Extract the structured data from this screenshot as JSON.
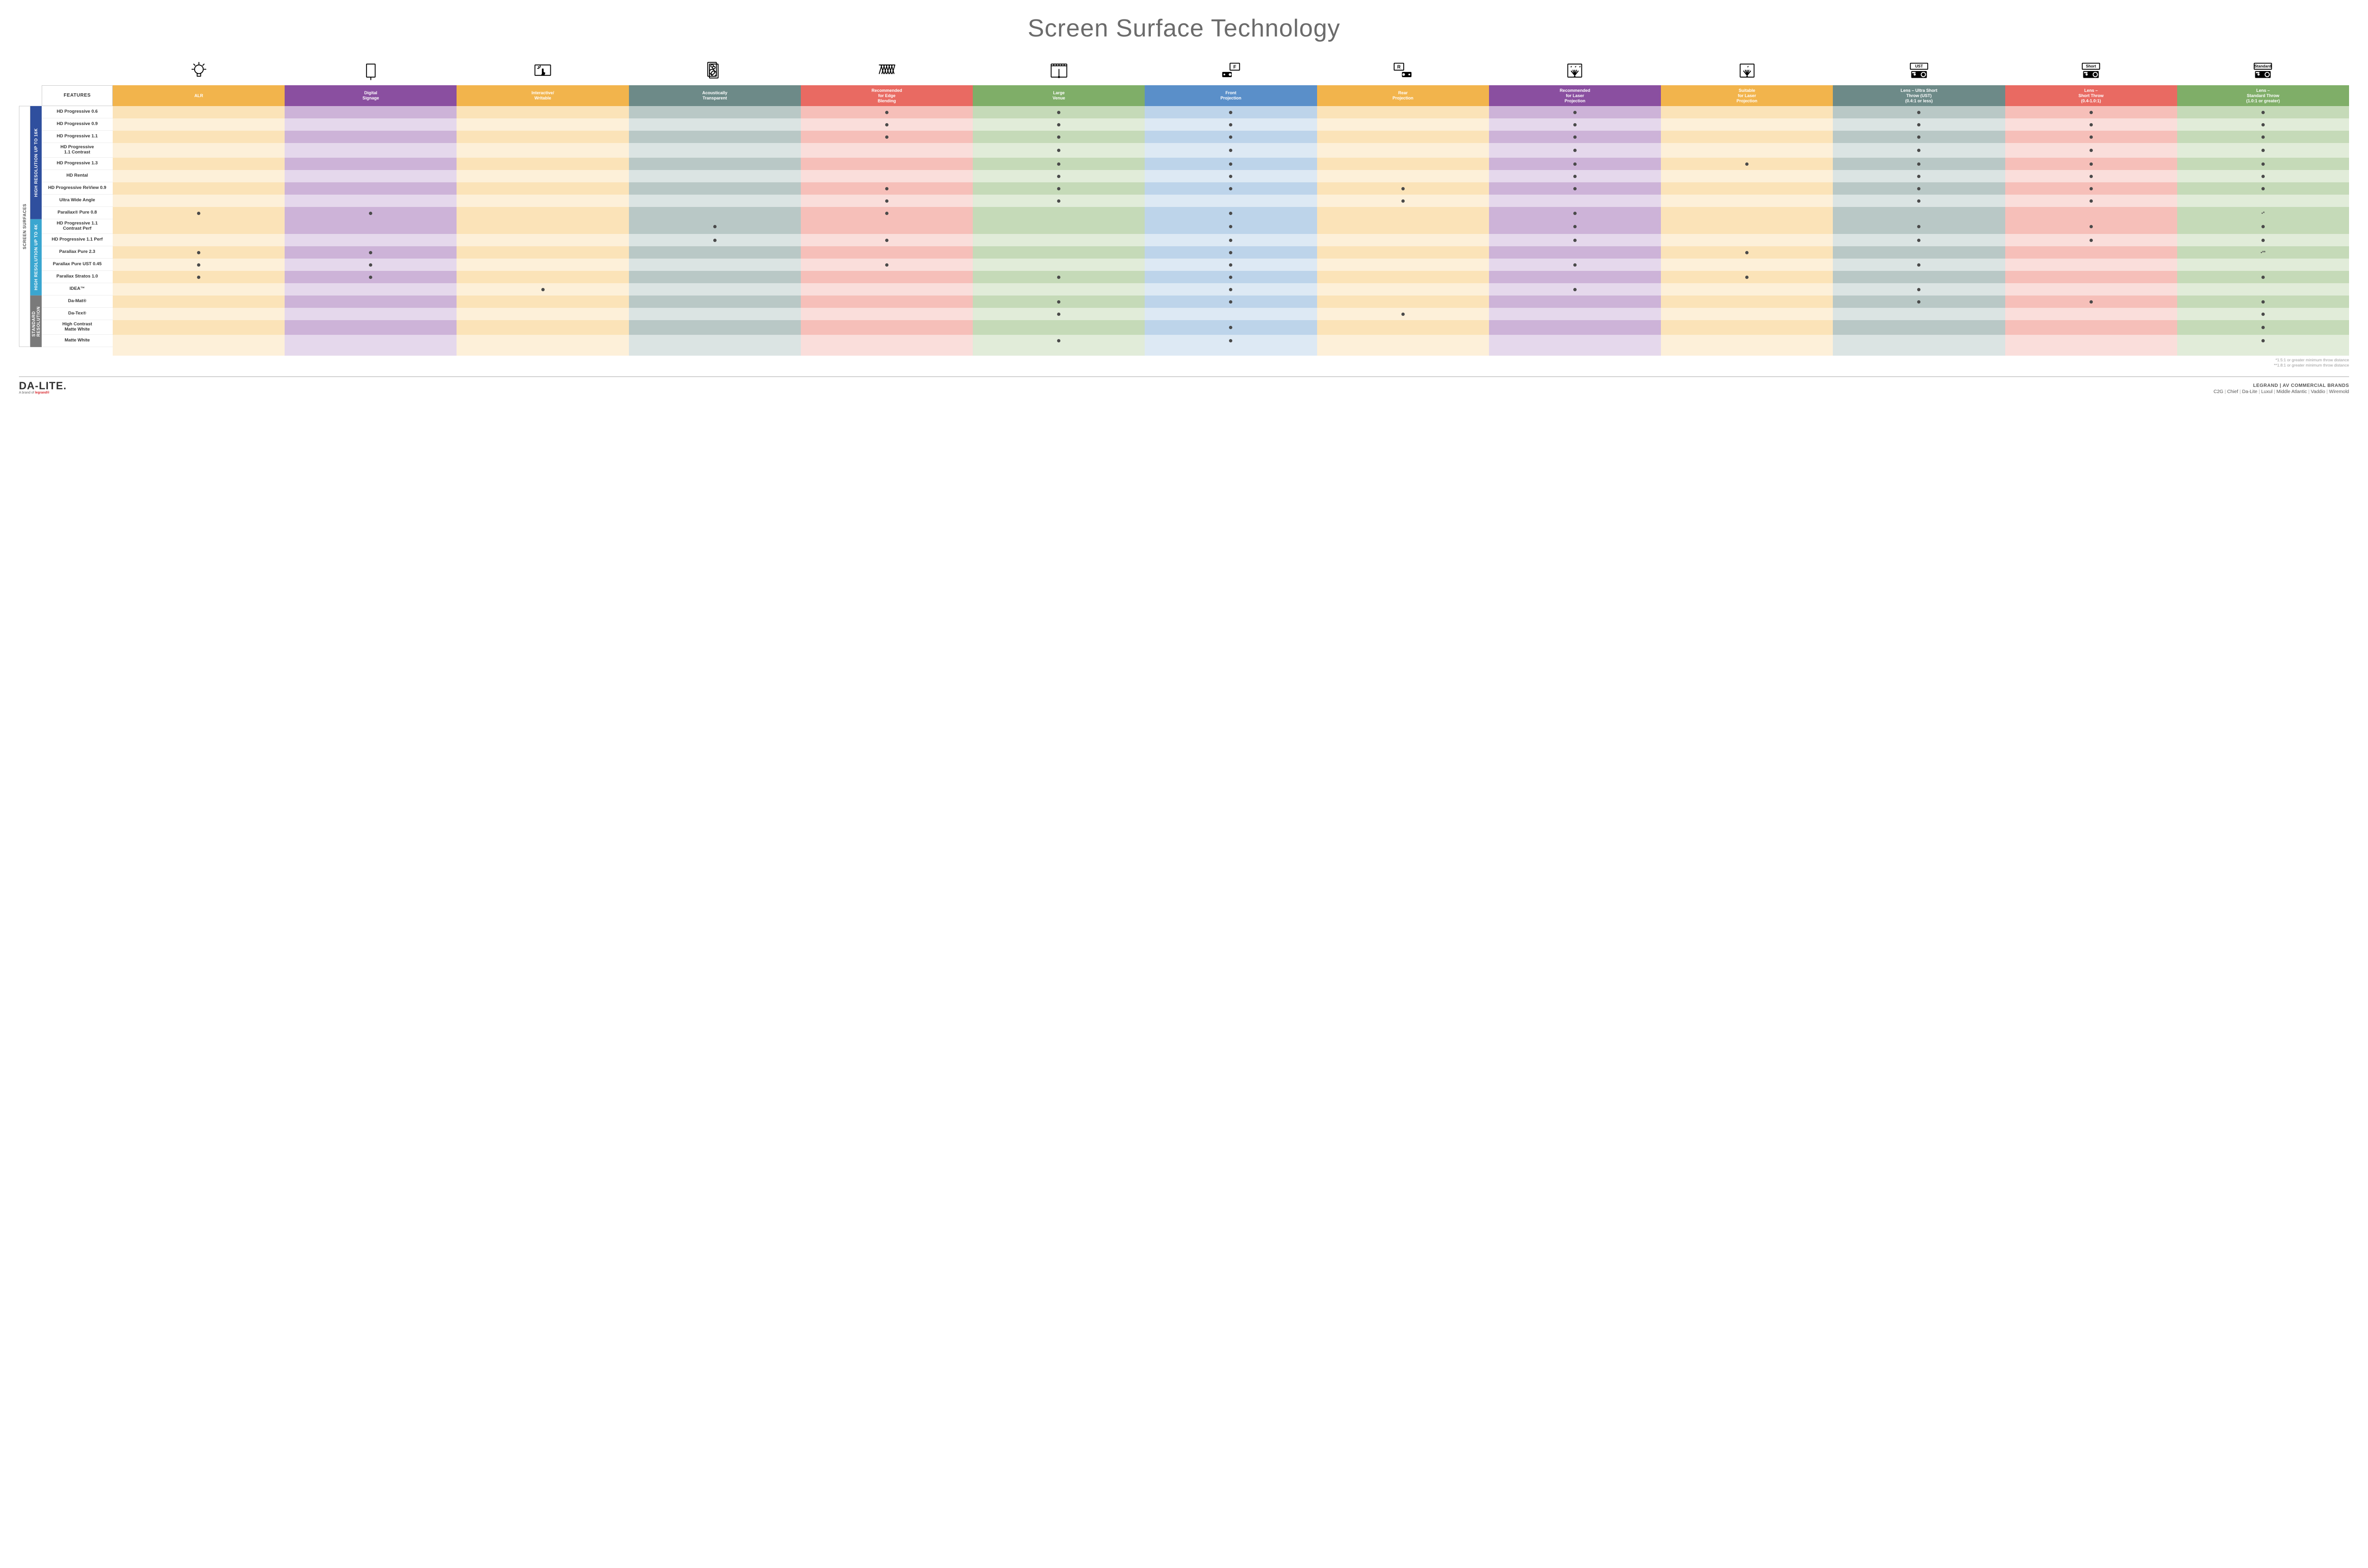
{
  "title": "Screen Surface Technology",
  "features_header": "FEATURES",
  "side_outer_label": "SCREEN SURFACES",
  "columns": [
    {
      "key": "alr",
      "label": "ALR",
      "color": "#f2b44c",
      "light": "#fbe3b8",
      "lighter": "#fdf0d9"
    },
    {
      "key": "digital",
      "label": "Digital\nSignage",
      "color": "#8a4fa0",
      "light": "#cdb3d8",
      "lighter": "#e5d8ec"
    },
    {
      "key": "interact",
      "label": "Interactive/\nWritable",
      "color": "#f2b44c",
      "light": "#fbe3b8",
      "lighter": "#fdf0d9"
    },
    {
      "key": "acoustic",
      "label": "Acoustically\nTransparent",
      "color": "#6d8a88",
      "light": "#b9c8c6",
      "lighter": "#dbe4e3"
    },
    {
      "key": "edge",
      "label": "Recommended\nfor Edge\nBlending",
      "color": "#e96a62",
      "light": "#f6bfb9",
      "lighter": "#fadedb"
    },
    {
      "key": "large",
      "label": "Large\nVenue",
      "color": "#7fae68",
      "light": "#c5dab8",
      "lighter": "#e1ecd9"
    },
    {
      "key": "front",
      "label": "Front\nProjection",
      "color": "#5a8fc9",
      "light": "#bdd4ea",
      "lighter": "#dde9f4"
    },
    {
      "key": "rear",
      "label": "Rear\nProjection",
      "color": "#f2b44c",
      "light": "#fbe3b8",
      "lighter": "#fdf0d9"
    },
    {
      "key": "laserR",
      "label": "Recommended\nfor Laser\nProjection",
      "color": "#8a4fa0",
      "light": "#cdb3d8",
      "lighter": "#e5d8ec"
    },
    {
      "key": "laserS",
      "label": "Suitable\nfor Laser\nProjection",
      "color": "#f2b44c",
      "light": "#fbe3b8",
      "lighter": "#fdf0d9"
    },
    {
      "key": "ust",
      "label": "Lens – Ultra Short\nThrow (UST)\n(0.4:1 or less)",
      "color": "#6d8a88",
      "light": "#b9c8c6",
      "lighter": "#dbe4e3"
    },
    {
      "key": "short",
      "label": "Lens –\nShort Throw\n(0.4-1.0:1)",
      "color": "#e96a62",
      "light": "#f6bfb9",
      "lighter": "#fadedb"
    },
    {
      "key": "std",
      "label": "Lens –\nStandard Throw\n(1.0:1 or greater)",
      "color": "#7fae68",
      "light": "#c5dab8",
      "lighter": "#e1ecd9"
    }
  ],
  "groups": [
    {
      "label": "HIGH RESOLUTION UP TO 16K",
      "color": "#2f4f9e",
      "rows": [
        {
          "name": "HD Progressive 0.6",
          "dots": {
            "edge": "•",
            "large": "•",
            "front": "•",
            "laserR": "•",
            "ust": "•",
            "short": "•",
            "std": "•"
          }
        },
        {
          "name": "HD Progressive 0.9",
          "dots": {
            "edge": "•",
            "large": "•",
            "front": "•",
            "laserR": "•",
            "ust": "•",
            "short": "•",
            "std": "•"
          }
        },
        {
          "name": "HD Progressive 1.1",
          "dots": {
            "edge": "•",
            "large": "•",
            "front": "•",
            "laserR": "•",
            "ust": "•",
            "short": "•",
            "std": "•"
          }
        },
        {
          "name": "HD Progressive\n1.1 Contrast",
          "dots": {
            "large": "•",
            "front": "•",
            "laserR": "•",
            "ust": "•",
            "short": "•",
            "std": "•"
          }
        },
        {
          "name": "HD Progressive 1.3",
          "dots": {
            "large": "•",
            "front": "•",
            "laserR": "•",
            "laserS": "•",
            "ust": "•",
            "short": "•",
            "std": "•"
          }
        },
        {
          "name": "HD Rental",
          "dots": {
            "large": "•",
            "front": "•",
            "laserR": "•",
            "ust": "•",
            "short": "•",
            "std": "•"
          }
        },
        {
          "name": "HD Progressive ReView 0.9",
          "dots": {
            "edge": "•",
            "large": "•",
            "front": "•",
            "rear": "•",
            "laserR": "•",
            "ust": "•",
            "short": "•",
            "std": "•"
          }
        },
        {
          "name": "Ultra Wide Angle",
          "dots": {
            "edge": "•",
            "large": "•",
            "rear": "•",
            "ust": "•",
            "short": "•"
          }
        },
        {
          "name": "Parallax® Pure 0.8",
          "dots": {
            "alr": "•",
            "digital": "•",
            "edge": "•",
            "front": "•",
            "laserR": "•",
            "std": "•*"
          }
        }
      ]
    },
    {
      "label": "HIGH RESOLUTION UP TO 4K",
      "color": "#3aa6d0",
      "rows": [
        {
          "name": "HD Progressive 1.1\nContrast Perf",
          "dots": {
            "acoustic": "•",
            "front": "•",
            "laserR": "•",
            "ust": "•",
            "short": "•",
            "std": "•"
          }
        },
        {
          "name": "HD Progressive 1.1 Perf",
          "dots": {
            "acoustic": "•",
            "edge": "•",
            "front": "•",
            "laserR": "•",
            "ust": "•",
            "short": "•",
            "std": "•"
          }
        },
        {
          "name": "Parallax Pure 2.3",
          "dots": {
            "alr": "•",
            "digital": "•",
            "front": "•",
            "laserS": "•",
            "std": "•**"
          }
        },
        {
          "name": "Parallax Pure UST 0.45",
          "dots": {
            "alr": "•",
            "digital": "•",
            "edge": "•",
            "front": "•",
            "laserR": "•",
            "ust": "•"
          }
        },
        {
          "name": "Parallax Stratos 1.0",
          "dots": {
            "alr": "•",
            "digital": "•",
            "large": "•",
            "front": "•",
            "laserS": "•",
            "std": "•"
          }
        },
        {
          "name": "IDEA™",
          "dots": {
            "interact": "•",
            "front": "•",
            "laserR": "•",
            "ust": "•"
          }
        }
      ]
    },
    {
      "label": "STANDARD\nRESOLUTION",
      "color": "#7a7a7a",
      "rows": [
        {
          "name": "Da-Mat®",
          "dots": {
            "large": "•",
            "front": "•",
            "ust": "•",
            "short": "•",
            "std": "•"
          }
        },
        {
          "name": "Da-Tex®",
          "dots": {
            "large": "•",
            "rear": "•",
            "std": "•"
          }
        },
        {
          "name": "High Contrast\nMatte White",
          "dots": {
            "front": "•",
            "std": "•"
          }
        },
        {
          "name": "Matte White",
          "dots": {
            "large": "•",
            "front": "•",
            "std": "•"
          }
        }
      ]
    }
  ],
  "footnotes": [
    "*1.5:1 or greater minimum throw distance",
    "**1.8:1 or greater minimum throw distance"
  ],
  "footer": {
    "logo_main": "DA-LITE.",
    "logo_sub_prefix": "A brand of ",
    "logo_sub_brand": "legrand®",
    "brands_title": "LEGRAND | AV COMMERCIAL BRANDS",
    "brands": [
      "C2G",
      "Chief",
      "Da-Lite",
      "Luxul",
      "Middle Atlantic",
      "Vaddio",
      "Wiremold"
    ]
  },
  "icons": {
    "alr": "bulb",
    "digital": "signage",
    "interact": "touch",
    "acoustic": "speaker",
    "edge": "vblinds",
    "large": "stage",
    "front": "projF",
    "rear": "projR",
    "laserR": "laser3",
    "laserS": "laser1",
    "ust": "projUST",
    "short": "projShort",
    "std": "projStd"
  }
}
